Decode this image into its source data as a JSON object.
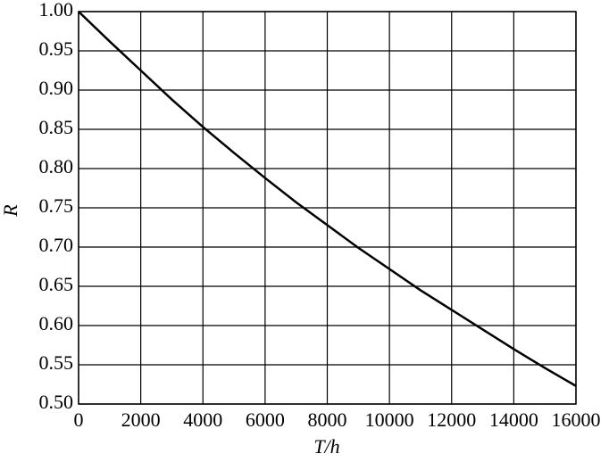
{
  "chart_data": {
    "type": "line",
    "x_label": "T/h",
    "y_label": "R",
    "x": [
      0,
      1000,
      2000,
      3000,
      4000,
      5000,
      6000,
      7000,
      8000,
      9000,
      10000,
      11000,
      12000,
      13000,
      14000,
      15000,
      16000
    ],
    "series": [
      {
        "name": "R",
        "color": "#000000",
        "values": [
          1.0,
          0.962,
          0.925,
          0.888,
          0.853,
          0.82,
          0.788,
          0.757,
          0.728,
          0.699,
          0.672,
          0.645,
          0.62,
          0.595,
          0.57,
          0.546,
          0.523
        ]
      }
    ],
    "xlim": [
      0,
      16000
    ],
    "xticks": [
      0,
      2000,
      4000,
      6000,
      8000,
      10000,
      12000,
      14000,
      16000
    ],
    "ylim": [
      0.5,
      1.0
    ],
    "yticks": [
      {
        "value": 0.5,
        "label": "0.50"
      },
      {
        "value": 0.55,
        "label": "0.55"
      },
      {
        "value": 0.6,
        "label": "0.60"
      },
      {
        "value": 0.65,
        "label": "0.65"
      },
      {
        "value": 0.7,
        "label": "0.70"
      },
      {
        "value": 0.75,
        "label": "0.75"
      },
      {
        "value": 0.8,
        "label": "0.80"
      },
      {
        "value": 0.85,
        "label": "0.85"
      },
      {
        "value": 0.9,
        "label": "0.90"
      },
      {
        "value": 0.95,
        "label": "0.95"
      },
      {
        "value": 1.0,
        "label": "1.00"
      }
    ],
    "grid": true
  }
}
